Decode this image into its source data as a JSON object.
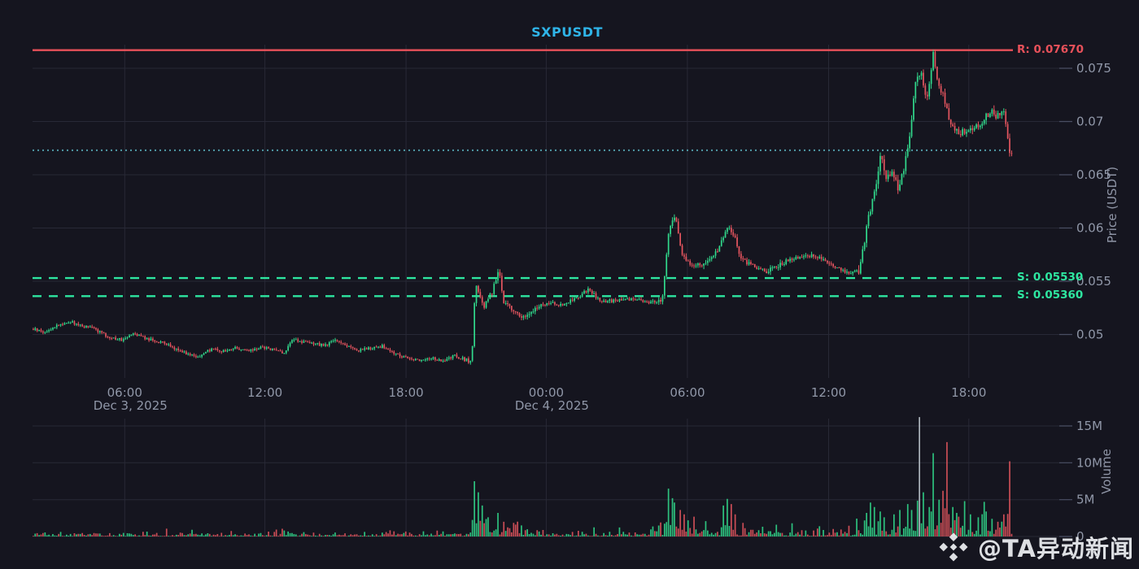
{
  "title": {
    "text": "SXPUSDT",
    "color": "#2fb4e8"
  },
  "watermark": {
    "text": "@TA异动新闻",
    "logo_icon": "binance-diamond-logo"
  },
  "colors": {
    "background": "#15151f",
    "up": "#31d98c",
    "down": "#e5555f",
    "resistance": "#e8515a",
    "support": "#2ee6a0",
    "current_dotted": "#4f9ba6",
    "grid": "rgba(168,178,208,0.13)",
    "tick_mark": "#4a4f63",
    "axis_text": "#9097a8",
    "pale_volume": "#b4bcc4"
  },
  "price_axis": {
    "label": "Price (USDT)",
    "ticks": [
      {
        "label": "0.075",
        "value": 0.075
      },
      {
        "label": "0.07",
        "value": 0.07
      },
      {
        "label": "0.065",
        "value": 0.065
      },
      {
        "label": "0.06",
        "value": 0.06
      },
      {
        "label": "0.055",
        "value": 0.055
      },
      {
        "label": "0.05",
        "value": 0.05
      }
    ]
  },
  "volume_axis": {
    "label": "Volume",
    "ticks": [
      {
        "label": "15M",
        "value": 15
      },
      {
        "label": "10M",
        "value": 10
      },
      {
        "label": "5M",
        "value": 5
      },
      {
        "label": "0",
        "value": 0
      }
    ]
  },
  "time_axis": {
    "ticks": [
      {
        "label": "06:00",
        "t": 0.094
      },
      {
        "label": "12:00",
        "t": 0.237
      },
      {
        "label": "18:00",
        "t": 0.381
      },
      {
        "label": "00:00",
        "t": 0.524
      },
      {
        "label": "06:00",
        "t": 0.668
      },
      {
        "label": "12:00",
        "t": 0.812
      },
      {
        "label": "18:00",
        "t": 0.955
      }
    ],
    "dates": [
      {
        "label": "Dec 3, 2025",
        "t": 0.094
      },
      {
        "label": "Dec 4, 2025",
        "t": 0.524
      }
    ]
  },
  "levels": {
    "resistance": {
      "label": "R: 0.07670",
      "value": 0.0767
    },
    "supports": [
      {
        "label": "S: 0.05530",
        "value": 0.0553
      },
      {
        "label": "S: 0.05360",
        "value": 0.0536
      }
    ],
    "current": {
      "value": 0.0673
    }
  },
  "chart_data": {
    "type": "candlestick+volume",
    "symbol": "SXPUSDT",
    "timeframe_span": "Dec 3 2025 ~02:00 → Dec 4 2025 ~20:00",
    "price_range_axis": [
      0.05,
      0.075
    ],
    "volume_range_axis_M": [
      0,
      15
    ],
    "candle_count": 500,
    "price_anchors": [
      [
        0.0,
        0.0505
      ],
      [
        0.012,
        0.0502
      ],
      [
        0.025,
        0.0509
      ],
      [
        0.037,
        0.0512
      ],
      [
        0.05,
        0.0508
      ],
      [
        0.062,
        0.0506
      ],
      [
        0.075,
        0.0498
      ],
      [
        0.091,
        0.0495
      ],
      [
        0.102,
        0.0502
      ],
      [
        0.116,
        0.0496
      ],
      [
        0.133,
        0.0492
      ],
      [
        0.145,
        0.0487
      ],
      [
        0.158,
        0.0482
      ],
      [
        0.17,
        0.0479
      ],
      [
        0.183,
        0.0487
      ],
      [
        0.195,
        0.0484
      ],
      [
        0.207,
        0.0488
      ],
      [
        0.22,
        0.0484
      ],
      [
        0.232,
        0.0488
      ],
      [
        0.245,
        0.0486
      ],
      [
        0.257,
        0.0483
      ],
      [
        0.266,
        0.0496
      ],
      [
        0.274,
        0.0493
      ],
      [
        0.286,
        0.0491
      ],
      [
        0.299,
        0.049
      ],
      [
        0.309,
        0.0495
      ],
      [
        0.32,
        0.049
      ],
      [
        0.332,
        0.0485
      ],
      [
        0.344,
        0.0487
      ],
      [
        0.357,
        0.0489
      ],
      [
        0.369,
        0.0482
      ],
      [
        0.382,
        0.0478
      ],
      [
        0.394,
        0.0476
      ],
      [
        0.407,
        0.0478
      ],
      [
        0.419,
        0.0474
      ],
      [
        0.43,
        0.048
      ],
      [
        0.44,
        0.0477
      ],
      [
        0.448,
        0.0474
      ],
      [
        0.452,
        0.0548
      ],
      [
        0.461,
        0.0526
      ],
      [
        0.469,
        0.054
      ],
      [
        0.476,
        0.0561
      ],
      [
        0.481,
        0.0531
      ],
      [
        0.49,
        0.0522
      ],
      [
        0.502,
        0.0516
      ],
      [
        0.515,
        0.0525
      ],
      [
        0.527,
        0.053
      ],
      [
        0.539,
        0.0528
      ],
      [
        0.552,
        0.0532
      ],
      [
        0.567,
        0.0542
      ],
      [
        0.581,
        0.0531
      ],
      [
        0.598,
        0.0532
      ],
      [
        0.614,
        0.0533
      ],
      [
        0.631,
        0.053
      ],
      [
        0.643,
        0.0532
      ],
      [
        0.65,
        0.06
      ],
      [
        0.656,
        0.0612
      ],
      [
        0.664,
        0.0572
      ],
      [
        0.676,
        0.0565
      ],
      [
        0.689,
        0.0568
      ],
      [
        0.701,
        0.058
      ],
      [
        0.71,
        0.0603
      ],
      [
        0.716,
        0.0594
      ],
      [
        0.724,
        0.057
      ],
      [
        0.734,
        0.0565
      ],
      [
        0.747,
        0.0559
      ],
      [
        0.759,
        0.0563
      ],
      [
        0.772,
        0.057
      ],
      [
        0.784,
        0.0572
      ],
      [
        0.797,
        0.0574
      ],
      [
        0.809,
        0.057
      ],
      [
        0.822,
        0.0562
      ],
      [
        0.834,
        0.0558
      ],
      [
        0.845,
        0.0561
      ],
      [
        0.853,
        0.0608
      ],
      [
        0.861,
        0.064
      ],
      [
        0.866,
        0.067
      ],
      [
        0.871,
        0.0646
      ],
      [
        0.878,
        0.0651
      ],
      [
        0.884,
        0.0638
      ],
      [
        0.89,
        0.0655
      ],
      [
        0.896,
        0.069
      ],
      [
        0.902,
        0.0738
      ],
      [
        0.907,
        0.0748
      ],
      [
        0.913,
        0.0716
      ],
      [
        0.92,
        0.0765
      ],
      [
        0.925,
        0.0736
      ],
      [
        0.931,
        0.0721
      ],
      [
        0.938,
        0.0696
      ],
      [
        0.946,
        0.0691
      ],
      [
        0.954,
        0.0688
      ],
      [
        0.963,
        0.0695
      ],
      [
        0.971,
        0.0701
      ],
      [
        0.978,
        0.071
      ],
      [
        0.984,
        0.0706
      ],
      [
        0.992,
        0.0709
      ],
      [
        0.998,
        0.0668
      ],
      [
        1.0,
        0.067
      ]
    ],
    "volume_spikes_M": [
      [
        0.451,
        7.5,
        "g"
      ],
      [
        0.455,
        6.0,
        "g"
      ],
      [
        0.459,
        4.2,
        "g"
      ],
      [
        0.465,
        2.6,
        "g"
      ],
      [
        0.475,
        3.2,
        "g"
      ],
      [
        0.48,
        2.0,
        "r"
      ],
      [
        0.498,
        1.5,
        "g"
      ],
      [
        0.65,
        6.5,
        "g"
      ],
      [
        0.653,
        5.2,
        "g"
      ],
      [
        0.656,
        4.6,
        "g"
      ],
      [
        0.661,
        3.6,
        "r"
      ],
      [
        0.665,
        3.0,
        "r"
      ],
      [
        0.669,
        2.2,
        "g"
      ],
      [
        0.705,
        4.2,
        "g"
      ],
      [
        0.71,
        5.1,
        "g"
      ],
      [
        0.714,
        4.4,
        "r"
      ],
      [
        0.718,
        3.0,
        "r"
      ],
      [
        0.759,
        1.6,
        "g"
      ],
      [
        0.776,
        1.8,
        "g"
      ],
      [
        0.851,
        3.2,
        "g"
      ],
      [
        0.855,
        4.6,
        "g"
      ],
      [
        0.86,
        4.0,
        "g"
      ],
      [
        0.865,
        3.4,
        "g"
      ],
      [
        0.87,
        2.6,
        "g"
      ],
      [
        0.88,
        3.0,
        "g"
      ],
      [
        0.886,
        3.6,
        "g"
      ],
      [
        0.893,
        4.4,
        "g"
      ],
      [
        0.898,
        3.6,
        "g"
      ],
      [
        0.906,
        16.2,
        "w"
      ],
      [
        0.91,
        6.0,
        "g"
      ],
      [
        0.915,
        4.0,
        "g"
      ],
      [
        0.92,
        11.3,
        "g"
      ],
      [
        0.925,
        5.0,
        "g"
      ],
      [
        0.93,
        6.2,
        "r"
      ],
      [
        0.934,
        12.8,
        "r"
      ],
      [
        0.939,
        4.0,
        "g"
      ],
      [
        0.944,
        3.2,
        "g"
      ],
      [
        0.951,
        4.8,
        "g"
      ],
      [
        0.958,
        3.0,
        "g"
      ],
      [
        0.965,
        2.6,
        "g"
      ],
      [
        0.973,
        3.4,
        "g"
      ],
      [
        0.979,
        2.4,
        "g"
      ],
      [
        0.986,
        2.0,
        "r"
      ],
      [
        0.992,
        3.0,
        "r"
      ],
      [
        0.997,
        10.2,
        "r"
      ]
    ],
    "activity_regions": [
      [
        0.0,
        0.44,
        0.5
      ],
      [
        0.44,
        0.52,
        1.3
      ],
      [
        0.52,
        0.63,
        0.7
      ],
      [
        0.63,
        0.77,
        1.4
      ],
      [
        0.77,
        0.84,
        0.9
      ],
      [
        0.84,
        1.0,
        2.4
      ]
    ]
  }
}
